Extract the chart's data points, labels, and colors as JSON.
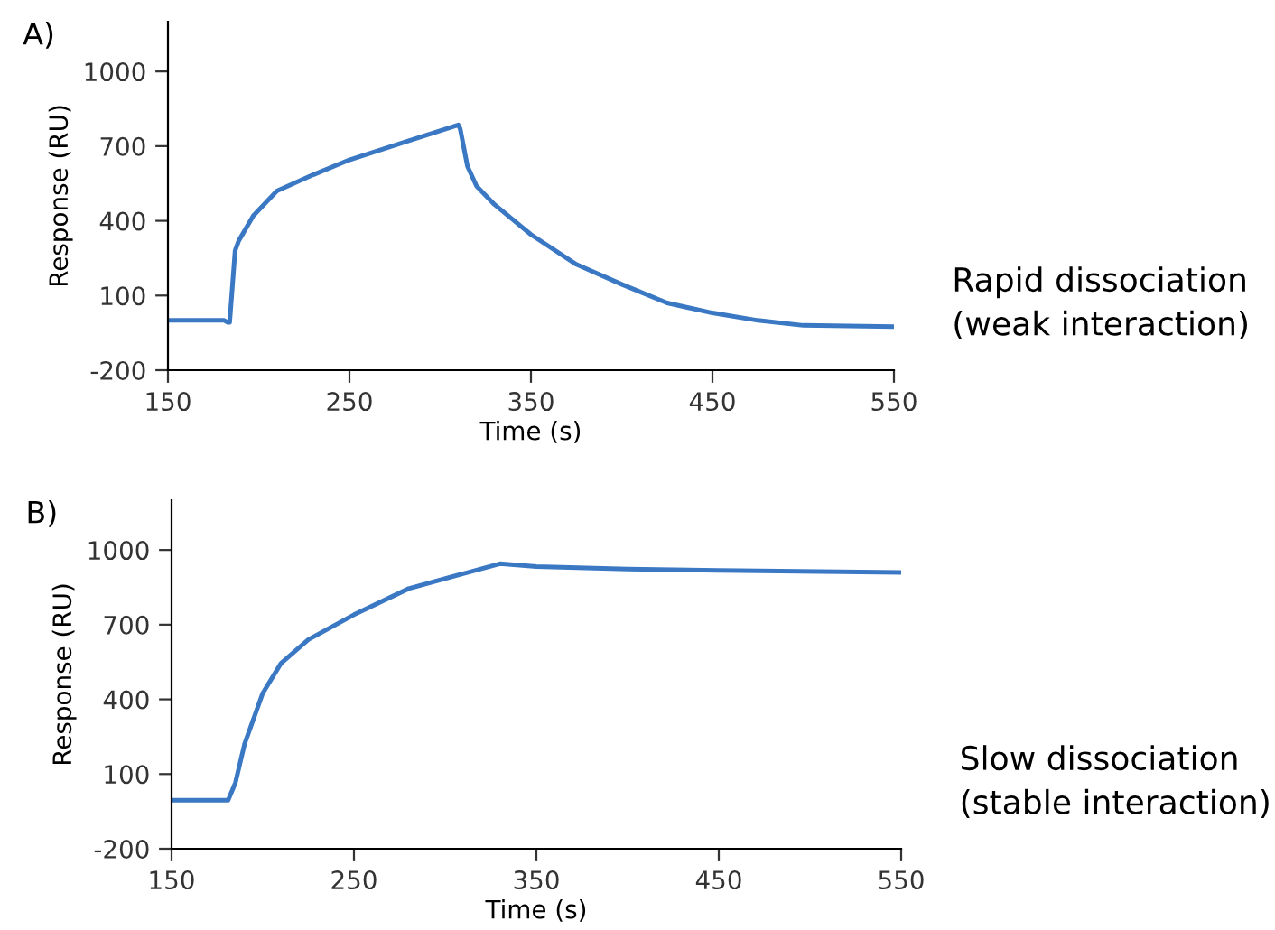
{
  "chart_data": [
    {
      "type": "line",
      "title": "A)",
      "xlabel": "Time (s)",
      "ylabel": "Response (RU)",
      "annotations": [
        "Rapid dissociation\n(weak interaction)"
      ],
      "series": [
        {
          "color": "#3a78c4",
          "x": [
            150,
            181,
            183,
            184,
            187,
            189,
            197,
            210,
            230,
            250,
            280,
            310,
            311,
            315,
            320,
            330,
            350,
            375,
            400,
            425,
            450,
            475,
            500,
            550
          ],
          "values": [
            0,
            0,
            -8,
            -8,
            280,
            320,
            420,
            520,
            585,
            645,
            715,
            785,
            770,
            620,
            540,
            465,
            345,
            225,
            145,
            70,
            30,
            0,
            -20,
            -25
          ]
        }
      ],
      "xlim": [
        150,
        550
      ],
      "ylim": [
        -200,
        1200
      ],
      "xticks": [
        150,
        250,
        350,
        450,
        550
      ],
      "yticks": [
        -200,
        100,
        400,
        700,
        1000
      ],
      "grid": false,
      "legend": false,
      "line_style": "solid"
    },
    {
      "type": "line",
      "title": "B)",
      "xlabel": "Time (s)",
      "ylabel": "Response (RU)",
      "annotations": [
        "Slow dissociation\n(stable interaction)"
      ],
      "series": [
        {
          "color": "#3a78c4",
          "x": [
            150,
            181,
            185,
            190,
            200,
            210,
            225,
            250,
            280,
            330,
            350,
            400,
            450,
            550
          ],
          "values": [
            -5,
            -5,
            65,
            220,
            425,
            545,
            640,
            740,
            845,
            945,
            933,
            923,
            918,
            910
          ]
        }
      ],
      "xlim": [
        150,
        550
      ],
      "ylim": [
        -200,
        1200
      ],
      "xticks": [
        150,
        250,
        350,
        450,
        550
      ],
      "yticks": [
        -200,
        100,
        400,
        700,
        1000
      ],
      "grid": false,
      "legend": false,
      "line_style": "solid"
    }
  ]
}
